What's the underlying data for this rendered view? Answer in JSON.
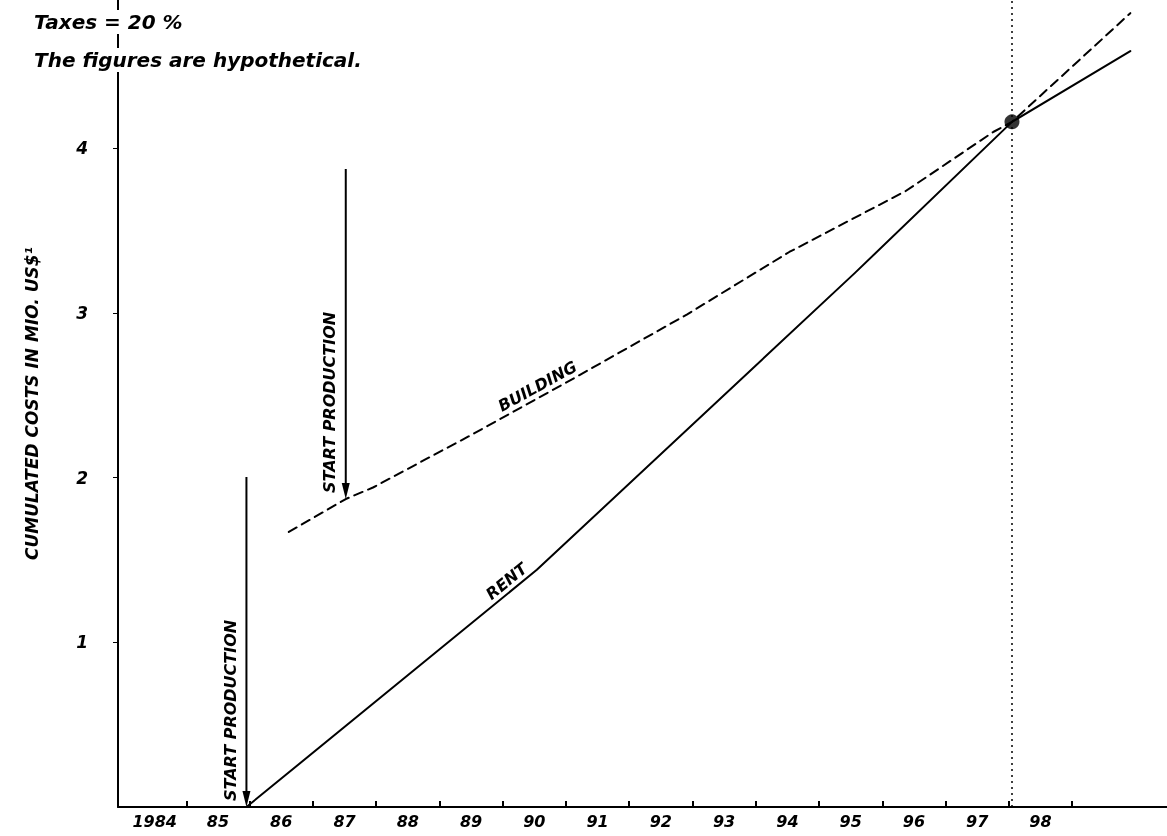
{
  "chart_data": {
    "type": "line",
    "annotations": [
      "Taxes = 20 %",
      "The figures are hypothetical.",
      {
        "text": "START PRODUCTION",
        "x": 1985.45,
        "y": 0
      },
      {
        "text": "START PRODUCTION",
        "x": 1987.02,
        "y": 1.87
      }
    ],
    "ylabel": "CUMULATED COSTS IN MIO. US$¹",
    "series": [
      {
        "name": "RENT",
        "color": "#000000",
        "line_style": "solid",
        "x": [
          1985.45,
          1990.04,
          1995.06,
          1997.55,
          1999.42
        ],
        "values": [
          0,
          1.44,
          3.24,
          4.16,
          4.59
        ]
      },
      {
        "name": "BUILDING",
        "color": "#000000",
        "line_style": "dashed",
        "x": [
          1986.12,
          1987.02,
          1987.45,
          1988.96,
          1990.61,
          1992.41,
          1994.03,
          1995.87,
          1997.26,
          1997.55,
          1999.42
        ],
        "values": [
          1.67,
          1.87,
          1.94,
          2.25,
          2.6,
          2.99,
          3.37,
          3.74,
          4.1,
          4.16,
          4.82
        ]
      },
      {
        "type": "scatter",
        "marker": "circle",
        "color": "#000000",
        "x": [
          1997.55
        ],
        "values": [
          4.16
        ]
      }
    ],
    "ref_lines": [
      {
        "axis": "x",
        "value": 1997.55,
        "line_style": "dotted",
        "color": "#000000"
      }
    ],
    "xlim": [
      1983.42,
      2000
    ],
    "xticks": [
      {
        "value": 1984,
        "label": "1984"
      },
      {
        "value": 1984.5,
        "label": null
      },
      {
        "value": 1985,
        "label": "85"
      },
      {
        "value": 1985.5,
        "label": null
      },
      {
        "value": 1986,
        "label": "86"
      },
      {
        "value": 1986.5,
        "label": null
      },
      {
        "value": 1987,
        "label": "87"
      },
      {
        "value": 1987.5,
        "label": null
      },
      {
        "value": 1988,
        "label": "88"
      },
      {
        "value": 1988.5,
        "label": null
      },
      {
        "value": 1989,
        "label": "89"
      },
      {
        "value": 1989.5,
        "label": null
      },
      {
        "value": 1990,
        "label": "90"
      },
      {
        "value": 1990.5,
        "label": null
      },
      {
        "value": 1991,
        "label": "91"
      },
      {
        "value": 1991.5,
        "label": null
      },
      {
        "value": 1992,
        "label": "92"
      },
      {
        "value": 1992.5,
        "label": null
      },
      {
        "value": 1993,
        "label": "93"
      },
      {
        "value": 1993.5,
        "label": null
      },
      {
        "value": 1994,
        "label": "94"
      },
      {
        "value": 1994.5,
        "label": null
      },
      {
        "value": 1995,
        "label": "95"
      },
      {
        "value": 1995.5,
        "label": null
      },
      {
        "value": 1996,
        "label": "96"
      },
      {
        "value": 1996.5,
        "label": null
      },
      {
        "value": 1997,
        "label": "97"
      },
      {
        "value": 1997.5,
        "label": null
      },
      {
        "value": 1998,
        "label": "98"
      },
      {
        "value": 1998.5,
        "label": null
      }
    ],
    "ylim": [
      0,
      4.9
    ],
    "yticks": [
      1,
      2,
      3,
      4
    ],
    "grid": false,
    "legend": false,
    "marker": "none"
  }
}
